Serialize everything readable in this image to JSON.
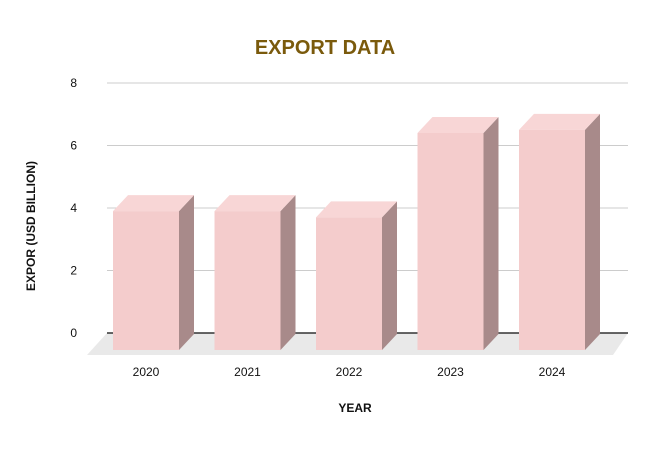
{
  "chart_data": {
    "type": "bar",
    "title": "EXPORT DATA",
    "xlabel": "YEAR",
    "ylabel": "EXPOR (USD BILLION)",
    "categories": [
      "2020",
      "2021",
      "2022",
      "2023",
      "2024"
    ],
    "values": [
      3.9,
      3.9,
      3.7,
      6.4,
      6.5
    ],
    "ylim": [
      0,
      8
    ],
    "yticks": [
      "0",
      "2",
      "4",
      "6",
      "8"
    ],
    "grid": true,
    "style": "3d",
    "colors": {
      "title": "#7a5a0c",
      "bar_front": "#f4cccc",
      "bar_top": "#f8d6d6",
      "bar_side": "#a88a8a",
      "floor": "#e9e9e9",
      "grid": "#cccccc",
      "axis": "#333333"
    }
  }
}
